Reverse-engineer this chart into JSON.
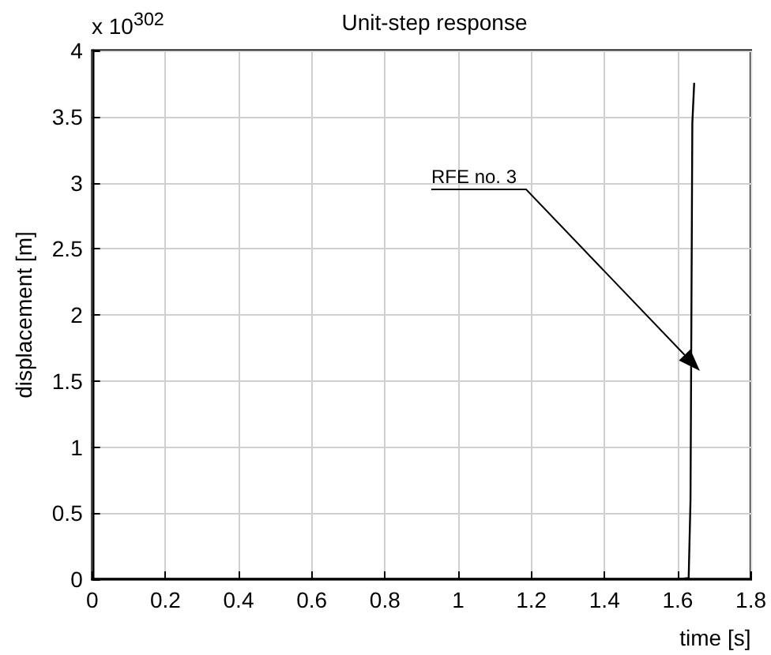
{
  "chart_data": {
    "type": "line",
    "title": "Unit-step response",
    "xlabel": "time [s]",
    "ylabel": "displacement [m]",
    "annotations": [
      "x 10$^{302}$",
      "RFE no. 3"
    ],
    "x": [
      0,
      1.6,
      1.63,
      1.635,
      1.64,
      1.645
    ],
    "series": [
      {
        "color": "#000000",
        "values": [
          0,
          0,
          0.01,
          0.6,
          3.45,
          3.75
        ]
      }
    ],
    "xlim": [
      0,
      1.8
    ],
    "xticks": [
      0,
      0.2,
      0.4,
      0.6,
      0.8,
      1,
      1.2,
      1.4,
      1.6,
      1.8
    ],
    "ylim": [
      0,
      4
    ],
    "yticks": [
      0,
      0.5,
      1,
      1.5,
      2,
      2.5,
      3,
      3.5,
      4
    ],
    "grid": true,
    "marker": "none",
    "line_style": "solid"
  }
}
